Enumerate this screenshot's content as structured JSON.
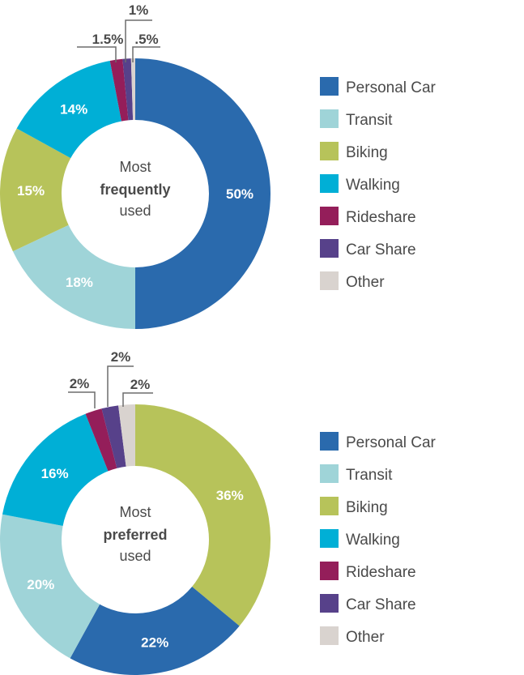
{
  "chart_data": [
    {
      "type": "pie",
      "title": "",
      "center_text": [
        "Most",
        "frequently",
        "used"
      ],
      "center_bold_index": 1,
      "categories": [
        "Personal Car",
        "Transit",
        "Biking",
        "Walking",
        "Rideshare",
        "Car Share",
        "Other"
      ],
      "values": [
        50,
        18,
        15,
        14,
        1.5,
        1,
        0.5
      ],
      "labels": [
        "50%",
        "18%",
        "15%",
        "14%",
        "1.5%",
        "1%",
        ".5%"
      ]
    },
    {
      "type": "pie",
      "title": "",
      "center_text": [
        "Most",
        "preferred",
        "used"
      ],
      "center_bold_index": 1,
      "categories": [
        "Biking",
        "Personal Car",
        "Transit",
        "Walking",
        "Rideshare",
        "Car Share",
        "Other"
      ],
      "values": [
        36,
        22,
        20,
        16,
        2,
        2,
        2
      ],
      "labels": [
        "36%",
        "22%",
        "20%",
        "16%",
        "2%",
        "2%",
        "2%"
      ]
    }
  ],
  "legend": [
    {
      "label": "Personal Car",
      "color": "#2a6aad"
    },
    {
      "label": "Transit",
      "color": "#9fd4d8"
    },
    {
      "label": "Biking",
      "color": "#b7c35a"
    },
    {
      "label": "Walking",
      "color": "#00afd6"
    },
    {
      "label": "Rideshare",
      "color": "#941e5a"
    },
    {
      "label": "Car Share",
      "color": "#57418a"
    },
    {
      "label": "Other",
      "color": "#d9d3cf"
    }
  ]
}
